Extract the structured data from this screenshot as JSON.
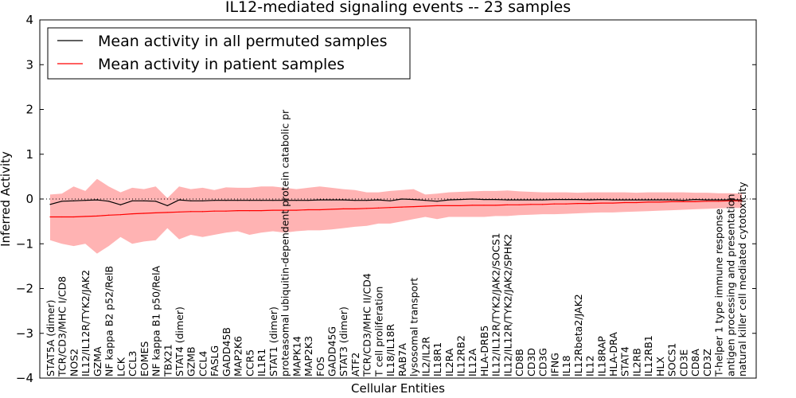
{
  "chart_data": {
    "type": "line",
    "title": "IL12-mediated signaling events -- 23 samples",
    "xlabel": "Cellular Entities",
    "ylabel": "Inferred Activity",
    "ylim": [
      -4,
      4
    ],
    "yticks": [
      -4,
      -3,
      -2,
      -1,
      0,
      1,
      2,
      3,
      4
    ],
    "ytick_labels": [
      "−4",
      "−3",
      "−2",
      "−1",
      "0",
      "1",
      "2",
      "3",
      "4"
    ],
    "legend_position": "top-left",
    "categories": [
      "STAT5A (dimer)",
      "TCR/CD3/MHC I/CD8",
      "NOS2",
      "IL12/IL12R/TYK2/JAK2",
      "GZMA",
      "NF kappa B2 p52/RelB",
      "LCK",
      "CCL3",
      "EOMES",
      "NF kappa B1 p50/RelA",
      "TBX21",
      "STAT4 (dimer)",
      "GZMB",
      "CCL4",
      "FASLG",
      "GADD45B",
      "MAP2K6",
      "CCR5",
      "IL1R1",
      "STAT1 (dimer)",
      "proteasomal ubiquitin-dependent protein catabolic pr",
      "MAPK14",
      "MAP2K3",
      "FOS",
      "GADD45G",
      "STAT3 (dimer)",
      "ATF2",
      "TCR/CD3/MHC II/CD4",
      "T cell proliferation",
      "IL18/IL18R",
      "RAB7A",
      "lysosomal transport",
      "IL2/IL2R",
      "IL18R1",
      "IL2RA",
      "IL12RB2",
      "IL12A",
      "HLA-DRB5",
      "IL12/IL12R/TYK2/JAK2/SOCS1",
      "IL12/IL12R/TYK2/JAK2/SPHK2",
      "CD8B",
      "CD3D",
      "CD3G",
      "IFNG",
      "IL18",
      "IL12Rbeta2/JAK2",
      "IL12",
      "IL18RAP",
      "HLA-DRA",
      "STAT4",
      "IL2RB",
      "IL12RB1",
      "HLX",
      "SOCS1",
      "CD3E",
      "CD8A",
      "CD3Z",
      "T-helper 1 type immune response",
      "antigen processing and presentation",
      "natural killer cell mediated cytotoxicity"
    ],
    "series": [
      {
        "name": "Mean activity in all permuted samples",
        "color": "#000000",
        "values": [
          -0.12,
          -0.05,
          -0.04,
          -0.03,
          -0.02,
          -0.05,
          -0.13,
          -0.04,
          -0.04,
          -0.05,
          -0.15,
          -0.02,
          -0.04,
          -0.04,
          -0.03,
          -0.03,
          -0.03,
          -0.03,
          -0.03,
          -0.03,
          -0.03,
          -0.03,
          -0.03,
          -0.02,
          -0.02,
          -0.02,
          -0.03,
          -0.03,
          -0.02,
          -0.04,
          0.0,
          -0.01,
          -0.03,
          -0.05,
          -0.02,
          -0.01,
          0.0,
          -0.01,
          -0.01,
          -0.02,
          -0.02,
          -0.02,
          -0.02,
          -0.01,
          -0.01,
          -0.01,
          -0.02,
          -0.01,
          -0.02,
          -0.02,
          -0.02,
          -0.02,
          -0.02,
          -0.02,
          -0.03,
          -0.01,
          -0.02,
          -0.02,
          -0.02,
          -0.02
        ]
      },
      {
        "name": "Mean activity in patient samples",
        "color": "#ff0000",
        "band_color": "#ff9999",
        "values": [
          -0.4,
          -0.4,
          -0.4,
          -0.39,
          -0.38,
          -0.36,
          -0.35,
          -0.33,
          -0.32,
          -0.31,
          -0.3,
          -0.29,
          -0.28,
          -0.28,
          -0.27,
          -0.27,
          -0.26,
          -0.26,
          -0.26,
          -0.25,
          -0.25,
          -0.25,
          -0.24,
          -0.24,
          -0.23,
          -0.22,
          -0.22,
          -0.21,
          -0.2,
          -0.19,
          -0.18,
          -0.17,
          -0.16,
          -0.15,
          -0.15,
          -0.15,
          -0.14,
          -0.14,
          -0.14,
          -0.13,
          -0.13,
          -0.12,
          -0.12,
          -0.11,
          -0.11,
          -0.1,
          -0.1,
          -0.09,
          -0.09,
          -0.08,
          -0.08,
          -0.07,
          -0.07,
          -0.06,
          -0.06,
          -0.06,
          -0.05,
          -0.05,
          -0.04,
          -0.04
        ],
        "upper": [
          0.1,
          0.12,
          0.28,
          0.18,
          0.45,
          0.28,
          0.15,
          0.25,
          0.22,
          0.28,
          0.02,
          0.28,
          0.22,
          0.25,
          0.2,
          0.26,
          0.25,
          0.25,
          0.28,
          0.28,
          0.25,
          0.22,
          0.25,
          0.28,
          0.25,
          0.22,
          0.2,
          0.15,
          0.15,
          0.18,
          0.2,
          0.22,
          0.1,
          0.12,
          0.15,
          0.16,
          0.17,
          0.18,
          0.18,
          0.19,
          0.17,
          0.16,
          0.15,
          0.15,
          0.15,
          0.14,
          0.15,
          0.15,
          0.15,
          0.15,
          0.14,
          0.15,
          0.15,
          0.15,
          0.15,
          0.14,
          0.14,
          0.13,
          0.13,
          0.12
        ],
        "lower": [
          -0.92,
          -1.0,
          -1.05,
          -1.0,
          -1.22,
          -1.05,
          -0.85,
          -1.0,
          -0.95,
          -0.92,
          -0.65,
          -0.9,
          -0.8,
          -0.85,
          -0.8,
          -0.75,
          -0.72,
          -0.8,
          -0.75,
          -0.72,
          -0.75,
          -0.72,
          -0.7,
          -0.7,
          -0.68,
          -0.65,
          -0.62,
          -0.6,
          -0.55,
          -0.55,
          -0.5,
          -0.45,
          -0.4,
          -0.45,
          -0.4,
          -0.4,
          -0.4,
          -0.4,
          -0.38,
          -0.38,
          -0.36,
          -0.35,
          -0.34,
          -0.34,
          -0.33,
          -0.32,
          -0.31,
          -0.3,
          -0.3,
          -0.29,
          -0.28,
          -0.27,
          -0.26,
          -0.25,
          -0.24,
          -0.23,
          -0.22,
          -0.21,
          -0.2,
          -0.2
        ]
      }
    ]
  }
}
